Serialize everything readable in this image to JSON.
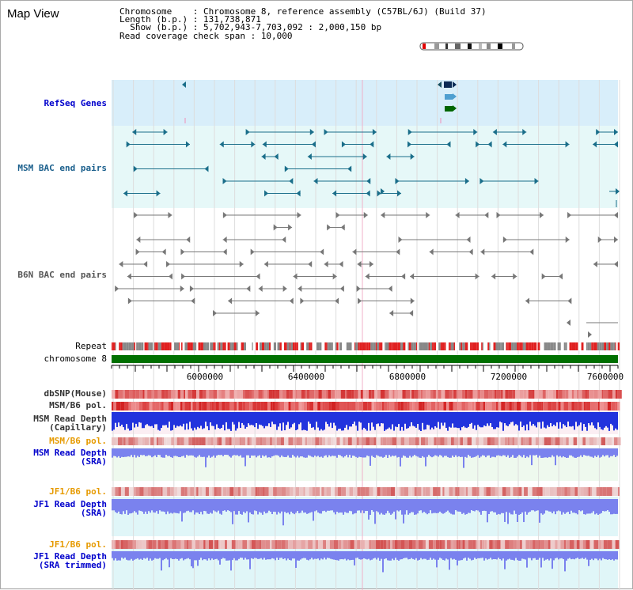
{
  "view": {
    "title": "Map View",
    "info": {
      "chromosome_label": "Chromosome    : ",
      "chromosome_value": "Chromosome 8, reference assembly (C57BL/6J) (Build 37)",
      "length_label": "Length (b.p.) : ",
      "length_value": "131,738,871",
      "show_label": "  Show (b.p.) : ",
      "show_value": "5,702,943-7,703,092 : 2,000,150 bp",
      "coverage_label": "Read coverage check span : ",
      "coverage_value": "10,000"
    }
  },
  "tracks": {
    "refseq": "RefSeq Genes",
    "msm_bac": "MSM BAC end pairs",
    "b6n_bac": "B6N BAC end pairs",
    "repeat": "Repeat",
    "chromosome": "chromosome 8",
    "dbsnp": "dbSNP(Mouse)",
    "msm_b6_pol_1": "MSM/B6 pol.",
    "msm_read_depth_cap": "MSM Read Depth\n(Capillary)",
    "msm_b6_pol_2": "MSM/B6 pol.",
    "msm_read_depth_sra": "MSM Read Depth\n(SRA)",
    "jf1_b6_pol_1": "JF1/B6 pol.",
    "jf1_read_depth_sra": "JF1 Read Depth\n(SRA)",
    "jf1_b6_pol_2": "JF1/B6 pol.",
    "jf1_read_depth_trim": "JF1 Read Depth\n(SRA trimmed)"
  },
  "axis": {
    "ticks": [
      "6000000",
      "6400000",
      "6800000",
      "7200000",
      "7600000"
    ]
  },
  "colors": {
    "refseq_bg": "#d8eefa",
    "bac_bg": "#e6f8f8",
    "msm_feature": "#1a6e8a",
    "b6n_feature": "#777777",
    "chromosome_bar": "#007000",
    "repeat_red": "#e02020",
    "repeat_grey": "#888888",
    "snp_red": "#ee3333",
    "depth_blue": "#2233dd",
    "depth_light": "#7a82ee"
  }
}
